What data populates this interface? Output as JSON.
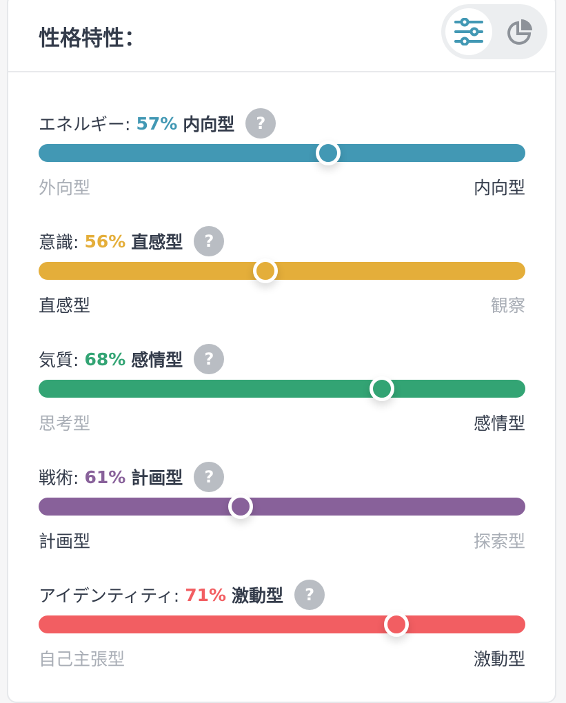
{
  "header": {
    "title": "性格特性："
  },
  "toggle": {
    "active": "sliders-icon",
    "inactive": "pie-chart-icon"
  },
  "traits": [
    {
      "name": "エネルギー:",
      "percent": 57,
      "percent_label": "57%",
      "type": "内向型",
      "left": "外向型",
      "right": "内向型",
      "active_side": "right",
      "color": "#4298b4",
      "help": "?"
    },
    {
      "name": "意識:",
      "percent": 56,
      "percent_label": "56%",
      "type": "直感型",
      "left": "直感型",
      "right": "観察",
      "active_side": "left",
      "color": "#e4ae3a",
      "help": "?"
    },
    {
      "name": "気質:",
      "percent": 68,
      "percent_label": "68%",
      "type": "感情型",
      "left": "思考型",
      "right": "感情型",
      "active_side": "right",
      "color": "#33a474",
      "help": "?"
    },
    {
      "name": "戦術:",
      "percent": 61,
      "percent_label": "61%",
      "type": "計画型",
      "left": "計画型",
      "right": "探索型",
      "active_side": "left",
      "color": "#88619a",
      "help": "?"
    },
    {
      "name": "アイデンティティ:",
      "percent": 71,
      "percent_label": "71%",
      "type": "激動型",
      "left": "自己主張型",
      "right": "激動型",
      "active_side": "right",
      "color": "#f25e62",
      "help": "?"
    }
  ]
}
